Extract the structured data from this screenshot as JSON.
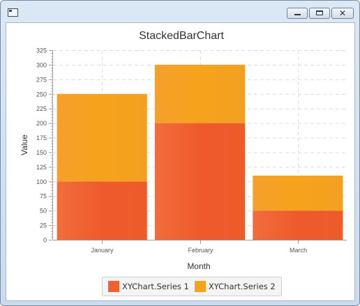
{
  "window": {
    "title": ""
  },
  "chart_data": {
    "type": "bar",
    "stacked": true,
    "title": "StackedBarChart",
    "xlabel": "Month",
    "ylabel": "Value",
    "categories": [
      "January",
      "February",
      "March"
    ],
    "series": [
      {
        "name": "XYChart.Series 1",
        "values": [
          100,
          200,
          50
        ],
        "color": "#f06030"
      },
      {
        "name": "XYChart.Series 2",
        "values": [
          150,
          100,
          60
        ],
        "color": "#f7a41d"
      }
    ],
    "ylim": [
      0,
      325
    ],
    "ytick_step": 25,
    "grid": true,
    "legend_position": "bottom"
  }
}
